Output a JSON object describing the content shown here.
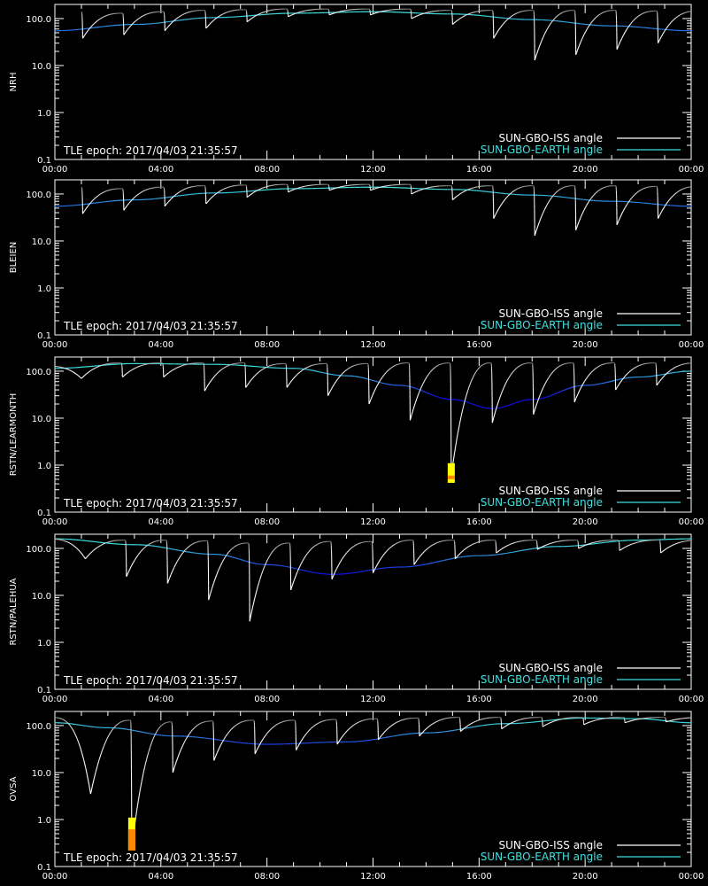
{
  "colors": {
    "background": "#000000",
    "axes": "#ffffff",
    "iss_dark": "#6a6a6a",
    "iss_light": "#ffffff",
    "earth_cyan": "#40e0e0",
    "earth_blue": "#1010e8",
    "marker_yellow": "#ffff00",
    "marker_orange": "#ff8800"
  },
  "chart_data": [
    {
      "type": "line",
      "ylabel": "NRH",
      "yscale": "log",
      "ylim": [
        0.1,
        200
      ],
      "yticks": [
        "0.1",
        "1.0",
        "10.0",
        "100.0"
      ],
      "xlim": [
        0,
        24
      ],
      "xticks": [
        "00:00",
        "04:00",
        "08:00",
        "12:00",
        "16:00",
        "20:00",
        "00:00"
      ],
      "annotation": "TLE epoch: 2017/04/03 21:35:57",
      "legend": [
        {
          "name": "SUN-GBO-ISS angle",
          "color": "#ffffff"
        },
        {
          "name": "SUN-GBO-EARTH angle",
          "color": "#40e0e0"
        }
      ],
      "legend_position": "bottom-right",
      "earth_angle": {
        "x": [
          0,
          3,
          6,
          9,
          12,
          15,
          18,
          21,
          24
        ],
        "y": [
          55,
          75,
          105,
          130,
          140,
          125,
          95,
          70,
          55
        ]
      },
      "iss_angle": {
        "peak_time": 1.0,
        "period": 1.55,
        "min_times": [
          1.05,
          2.6,
          4.15,
          5.7,
          7.25,
          8.8,
          10.35,
          11.9,
          13.45,
          15.0,
          16.55,
          18.1,
          19.65,
          21.2,
          22.75
        ],
        "min_values": [
          38,
          45,
          55,
          62,
          85,
          110,
          120,
          120,
          100,
          75,
          38,
          13,
          17,
          22,
          30
        ],
        "peaks": [
          140,
          130,
          140,
          150,
          155,
          160,
          160,
          160,
          160,
          150,
          150,
          150,
          150,
          150,
          145,
          145
        ]
      },
      "markers": []
    },
    {
      "type": "line",
      "ylabel": "BLEIEN",
      "yscale": "log",
      "ylim": [
        0.1,
        200
      ],
      "yticks": [
        "0.1",
        "1.0",
        "10.0",
        "100.0"
      ],
      "xlim": [
        0,
        24
      ],
      "xticks": [
        "00:00",
        "04:00",
        "08:00",
        "12:00",
        "16:00",
        "20:00",
        "00:00"
      ],
      "annotation": "TLE epoch: 2017/04/03 21:35:57",
      "legend": [
        {
          "name": "SUN-GBO-ISS angle",
          "color": "#ffffff"
        },
        {
          "name": "SUN-GBO-EARTH angle",
          "color": "#40e0e0"
        }
      ],
      "legend_position": "bottom-right",
      "earth_angle": {
        "x": [
          0,
          3,
          6,
          9,
          12,
          15,
          18,
          21,
          24
        ],
        "y": [
          55,
          75,
          105,
          130,
          140,
          125,
          95,
          70,
          55
        ]
      },
      "iss_angle": {
        "peak_time": 1.0,
        "period": 1.55,
        "min_times": [
          1.05,
          2.6,
          4.15,
          5.7,
          7.25,
          8.8,
          10.35,
          11.9,
          13.45,
          15.0,
          16.55,
          18.1,
          19.65,
          21.2,
          22.75
        ],
        "min_values": [
          38,
          45,
          55,
          62,
          85,
          110,
          120,
          120,
          100,
          75,
          30,
          13,
          17,
          22,
          30
        ],
        "peaks": [
          140,
          130,
          140,
          150,
          155,
          160,
          160,
          160,
          160,
          150,
          150,
          150,
          150,
          150,
          145,
          145
        ]
      },
      "markers": []
    },
    {
      "type": "line",
      "ylabel": "RSTN/LEARMONTH",
      "yscale": "log",
      "ylim": [
        0.1,
        200
      ],
      "yticks": [
        "0.1",
        "1.0",
        "10.0",
        "100.0"
      ],
      "xlim": [
        0,
        24
      ],
      "xticks": [
        "00:00",
        "04:00",
        "08:00",
        "12:00",
        "16:00",
        "20:00",
        "00:00"
      ],
      "annotation": "TLE epoch: 2017/04/03 21:35:57",
      "legend": [
        {
          "name": "SUN-GBO-ISS angle",
          "color": "#ffffff"
        },
        {
          "name": "SUN-GBO-EARTH angle",
          "color": "#40e0e0"
        }
      ],
      "legend_position": "bottom-right",
      "earth_angle": {
        "x": [
          0,
          3,
          6,
          9,
          11,
          13,
          15,
          16.5,
          18,
          20,
          22,
          24
        ],
        "y": [
          115,
          145,
          140,
          115,
          80,
          50,
          25,
          16,
          25,
          50,
          75,
          100
        ]
      },
      "iss_angle": {
        "peak_time": -0.55,
        "period": 1.55,
        "min_times": [
          1.0,
          2.55,
          4.1,
          5.65,
          7.2,
          8.75,
          10.3,
          11.85,
          13.4,
          14.95,
          16.5,
          18.05,
          19.6,
          21.15,
          22.7
        ],
        "min_values": [
          70,
          75,
          75,
          38,
          45,
          45,
          30,
          20,
          9,
          0.6,
          8,
          12,
          22,
          40,
          50
        ],
        "peaks": [
          130,
          150,
          150,
          150,
          150,
          145,
          145,
          145,
          150,
          150,
          150,
          150,
          150,
          150,
          150,
          150
        ]
      },
      "markers": [
        {
          "time": 14.95,
          "segments": [
            {
              "lo": 0.42,
              "hi": 1.1,
              "color": "#ffff00"
            },
            {
              "lo": 0.5,
              "hi": 0.6,
              "color": "#ff8800"
            }
          ]
        }
      ]
    },
    {
      "type": "line",
      "ylabel": "RSTN/PALEHUA",
      "yscale": "log",
      "ylim": [
        0.1,
        200
      ],
      "yticks": [
        "0.1",
        "1.0",
        "10.0",
        "100.0"
      ],
      "xlim": [
        0,
        24
      ],
      "xticks": [
        "00:00",
        "04:00",
        "08:00",
        "12:00",
        "16:00",
        "20:00",
        "00:00"
      ],
      "annotation": "TLE epoch: 2017/04/03 21:35:57",
      "legend": [
        {
          "name": "SUN-GBO-ISS angle",
          "color": "#ffffff"
        },
        {
          "name": "SUN-GBO-EARTH angle",
          "color": "#40e0e0"
        }
      ],
      "legend_position": "bottom-right",
      "earth_angle": {
        "x": [
          0,
          3,
          6,
          8,
          10.5,
          13,
          16,
          19,
          22,
          24
        ],
        "y": [
          160,
          120,
          75,
          45,
          28,
          40,
          70,
          110,
          150,
          160
        ]
      },
      "iss_angle": {
        "peak_time": -0.4,
        "period": 1.55,
        "min_times": [
          1.15,
          2.7,
          4.25,
          5.8,
          7.35,
          8.9,
          10.45,
          12.0,
          13.55,
          15.1,
          16.65,
          18.2,
          19.75,
          21.3,
          22.85
        ],
        "min_values": [
          60,
          25,
          18,
          8,
          2.8,
          13,
          22,
          30,
          45,
          60,
          80,
          95,
          100,
          90,
          80
        ],
        "peaks": [
          160,
          150,
          150,
          145,
          130,
          130,
          140,
          140,
          150,
          150,
          150,
          150,
          150,
          150,
          150,
          150
        ]
      },
      "markers": []
    },
    {
      "type": "line",
      "ylabel": "OVSA",
      "yscale": "log",
      "ylim": [
        0.1,
        200
      ],
      "yticks": [
        "0.1",
        "1.0",
        "10.0",
        "100.0"
      ],
      "xlim": [
        0,
        24
      ],
      "xticks": [
        "00:00",
        "04:00",
        "08:00",
        "12:00",
        "16:00",
        "20:00",
        "00:00"
      ],
      "annotation": "TLE epoch: 2017/04/03 21:35:57",
      "legend": [
        {
          "name": "SUN-GBO-ISS angle",
          "color": "#ffffff"
        },
        {
          "name": "SUN-GBO-EARTH angle",
          "color": "#40e0e0"
        }
      ],
      "legend_position": "bottom-right",
      "earth_angle": {
        "x": [
          0,
          2,
          4.5,
          8,
          11,
          14,
          17,
          20,
          22,
          24
        ],
        "y": [
          115,
          90,
          60,
          40,
          45,
          70,
          110,
          145,
          140,
          115
        ]
      },
      "iss_angle": {
        "peak_time": -0.2,
        "period": 1.55,
        "min_times": [
          1.35,
          2.9,
          4.45,
          6.0,
          7.55,
          9.1,
          10.65,
          12.2,
          13.75,
          15.3,
          16.85,
          18.4,
          19.95,
          21.5,
          23.05
        ],
        "min_values": [
          3.5,
          0.25,
          10,
          18,
          25,
          30,
          40,
          50,
          60,
          75,
          85,
          95,
          105,
          115,
          120
        ],
        "peaks": [
          150,
          130,
          120,
          125,
          130,
          130,
          135,
          140,
          145,
          150,
          150,
          150,
          150,
          150,
          150,
          150
        ]
      },
      "markers": [
        {
          "time": 2.9,
          "segments": [
            {
              "lo": 0.22,
              "hi": 1.1,
              "color": "#ffff00"
            },
            {
              "lo": 0.22,
              "hi": 0.62,
              "color": "#ff8800"
            }
          ]
        }
      ]
    }
  ]
}
